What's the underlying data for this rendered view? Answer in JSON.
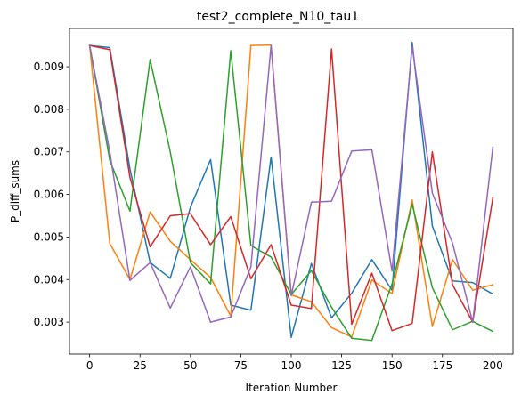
{
  "chart_data": {
    "type": "line",
    "title": "test2_complete_N10_tau1",
    "xlabel": "Iteration Number",
    "ylabel": "P_diff_sums",
    "xlim": [
      -10,
      210
    ],
    "ylim": [
      0.00225,
      0.0099
    ],
    "xticks": [
      0,
      25,
      50,
      75,
      100,
      125,
      150,
      175,
      200
    ],
    "xtick_labels": [
      "0",
      "25",
      "50",
      "75",
      "100",
      "125",
      "150",
      "175",
      "200"
    ],
    "yticks": [
      0.003,
      0.004,
      0.005,
      0.006,
      0.007,
      0.008,
      0.009
    ],
    "ytick_labels": [
      "0.003",
      "0.004",
      "0.005",
      "0.006",
      "0.007",
      "0.008",
      "0.009"
    ],
    "grid": false,
    "x": [
      0,
      10,
      20,
      30,
      40,
      50,
      60,
      70,
      80,
      90,
      100,
      110,
      120,
      130,
      140,
      150,
      160,
      170,
      180,
      190,
      200
    ],
    "series": [
      {
        "color": "#1f77b4",
        "values": [
          0.0095,
          0.00945,
          0.0066,
          0.0044,
          0.00403,
          0.0057,
          0.00682,
          0.0034,
          0.00328,
          0.00688,
          0.00264,
          0.00438,
          0.0031,
          0.00368,
          0.00447,
          0.00375,
          0.00957,
          0.00526,
          0.00397,
          0.00393,
          0.00366
        ]
      },
      {
        "color": "#ff7f0e",
        "values": [
          0.0095,
          0.00485,
          0.004,
          0.00559,
          0.0049,
          0.00447,
          0.00405,
          0.00314,
          0.0095,
          0.00951,
          0.00364,
          0.00348,
          0.00287,
          0.00265,
          0.00399,
          0.00367,
          0.00587,
          0.0029,
          0.00447,
          0.00375,
          0.00388
        ]
      },
      {
        "color": "#2ca02c",
        "values": [
          0.0095,
          0.0068,
          0.00561,
          0.00917,
          0.007,
          0.0044,
          0.0039,
          0.00938,
          0.0048,
          0.00453,
          0.00365,
          0.00421,
          0.00335,
          0.00262,
          0.00257,
          0.0039,
          0.00577,
          0.00381,
          0.00282,
          0.00302,
          0.00278
        ]
      },
      {
        "color": "#d62728",
        "values": [
          0.0095,
          0.0094,
          0.0064,
          0.00477,
          0.0055,
          0.00555,
          0.00482,
          0.00548,
          0.00402,
          0.00482,
          0.0034,
          0.00332,
          0.00942,
          0.00295,
          0.00415,
          0.0028,
          0.00297,
          0.007,
          0.00388,
          0.003,
          0.00592
        ]
      },
      {
        "color": "#9467bd",
        "values": [
          0.0095,
          0.007,
          0.00398,
          0.0044,
          0.00333,
          0.0043,
          0.003,
          0.00312,
          0.0043,
          0.0095,
          0.00362,
          0.00582,
          0.00584,
          0.00702,
          0.00705,
          0.0042,
          0.00948,
          0.00603,
          0.00486,
          0.003,
          0.00711
        ]
      }
    ]
  }
}
